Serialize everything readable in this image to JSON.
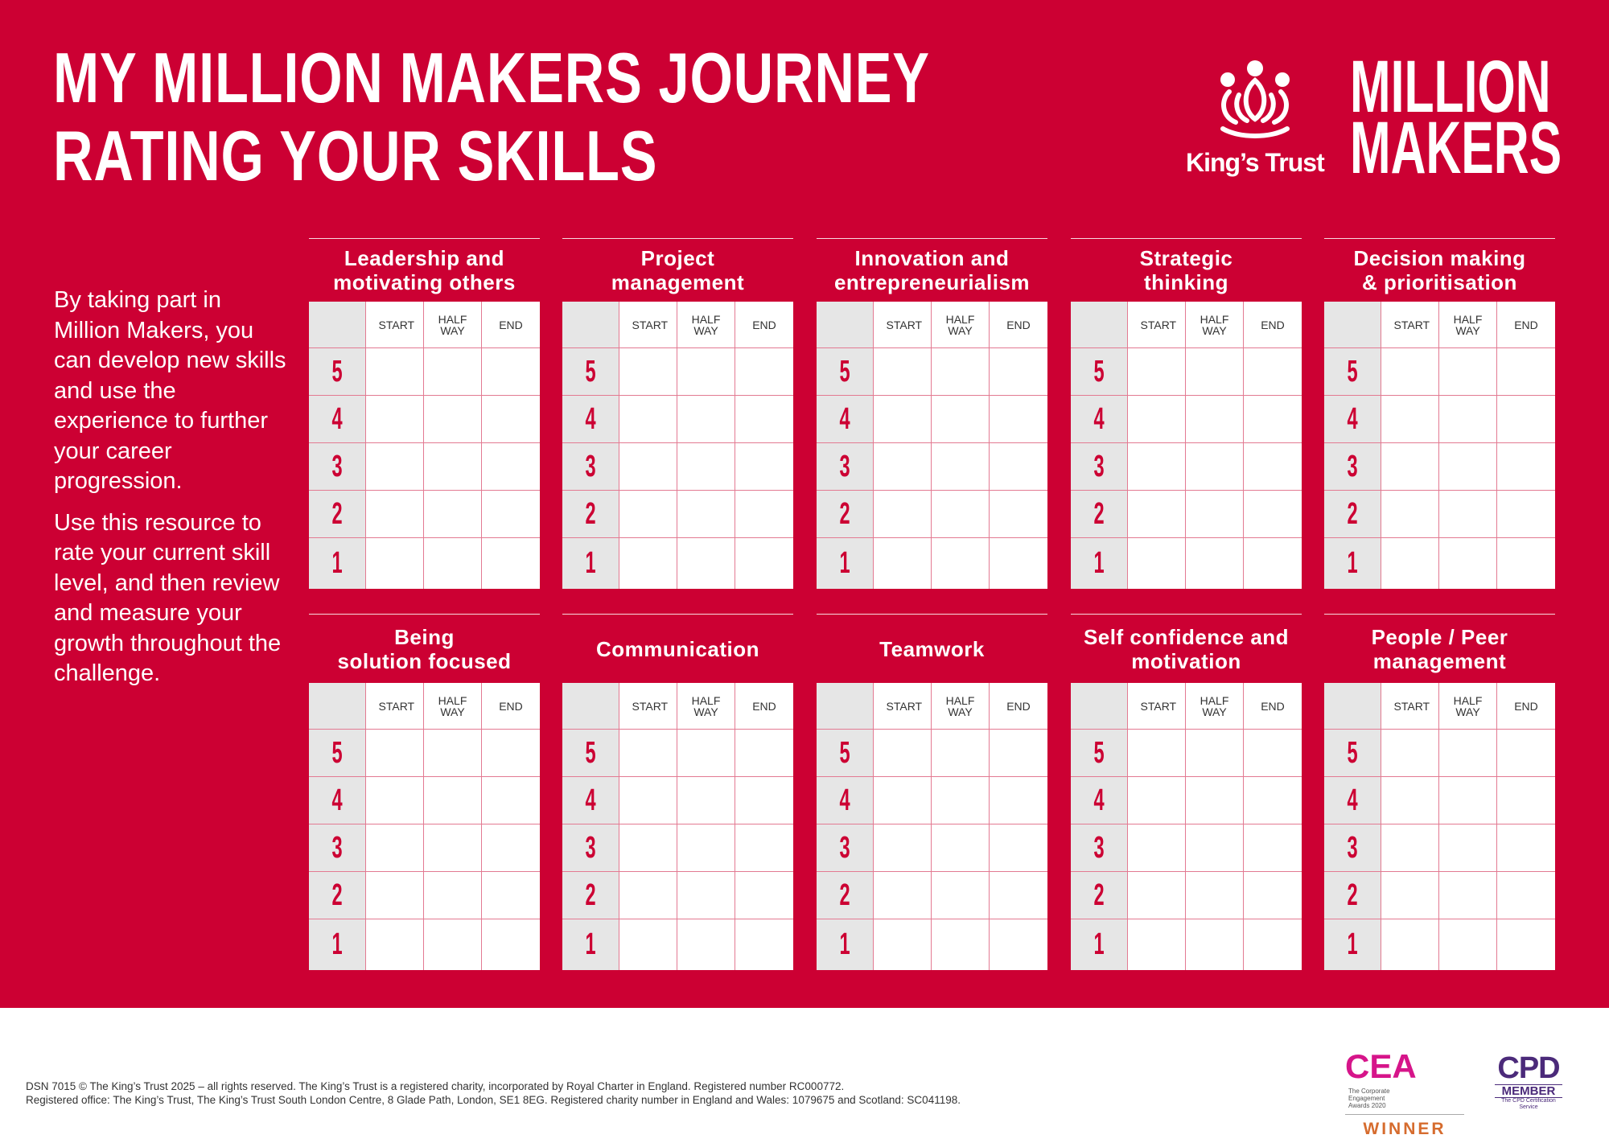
{
  "title": {
    "line1": "MY MILLION MAKERS JOURNEY",
    "line2": "RATING YOUR SKILLS"
  },
  "branding": {
    "kings_trust": "King’s Trust",
    "million": "MILLION",
    "makers": "MAKERS"
  },
  "intro": {
    "p1": "By taking part in Million Makers, you can develop new skills and use the experience to further your career progression.",
    "p2": "Use this resource to rate your current skill level, and then review and measure your growth throughout the challenge."
  },
  "columns": [
    "START",
    "HALF WAY",
    "END"
  ],
  "ratings": [
    "5",
    "4",
    "3",
    "2",
    "1"
  ],
  "skills": [
    {
      "line1": "Leadership and",
      "line2": "motivating others"
    },
    {
      "line1": "Project",
      "line2": "management"
    },
    {
      "line1": "Innovation and",
      "line2": "entrepreneurialism"
    },
    {
      "line1": "Strategic",
      "line2": "thinking"
    },
    {
      "line1": "Decision making",
      "line2": "& prioritisation"
    },
    {
      "line1": "Being",
      "line2": "solution focused"
    },
    {
      "line1": "Communication",
      "line2": ""
    },
    {
      "line1": "Teamwork",
      "line2": ""
    },
    {
      "line1": "Self confidence and",
      "line2": "motivation"
    },
    {
      "line1": "People / Peer",
      "line2": "management"
    }
  ],
  "footer": {
    "line1": "DSN 7015 © The King’s Trust 2025 – all rights reserved. The King’s Trust is a registered charity, incorporated by Royal Charter in England. Registered number RC000772.",
    "line2": "Registered office: The King’s Trust, The King’s Trust South London Centre, 8 Glade Path, London, SE1 8EG. Registered charity number in England and Wales: 1079675 and Scotland: SC041198."
  },
  "badges": {
    "cea": "CEA",
    "cea_sub": "The Corporate Engagement Awards 2020",
    "winner": "WINNER",
    "cpd": "CPD",
    "member": "MEMBER",
    "cpd_sub": "The CPD Certification Service"
  }
}
